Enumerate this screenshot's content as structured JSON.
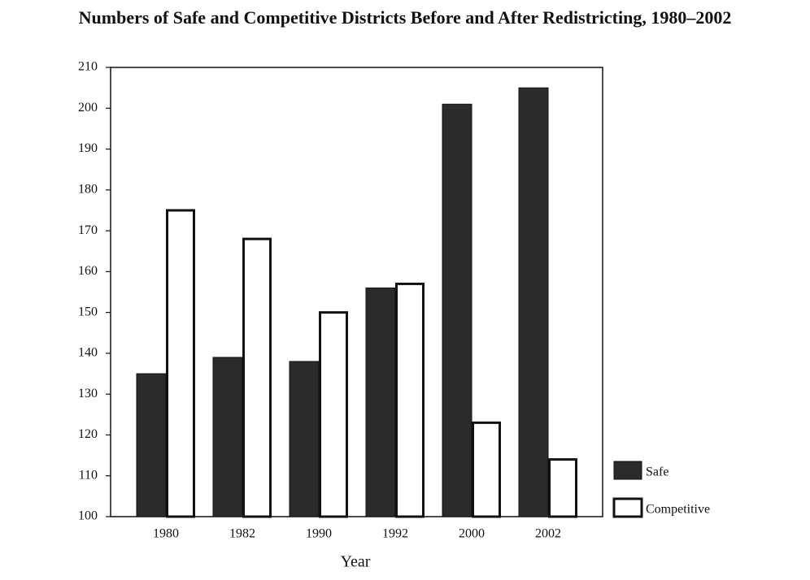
{
  "chart_data": {
    "type": "bar",
    "title": "Numbers of Safe and Competitive Districts Before and After Redistricting, 1980–2002",
    "x_label": "Year",
    "categories": [
      "1980",
      "1982",
      "1990",
      "1992",
      "2000",
      "2002"
    ],
    "series": [
      {
        "name": "Safe",
        "color": "#2b2b2b",
        "values": [
          135,
          139,
          138,
          156,
          201,
          205
        ]
      },
      {
        "name": "Competitive",
        "color": "#ffffff",
        "values": [
          175,
          168,
          150,
          157,
          123,
          114
        ]
      }
    ],
    "ylim": [
      100,
      210
    ],
    "yticks": [
      100,
      110,
      120,
      130,
      140,
      150,
      160,
      170,
      180,
      190,
      200,
      210
    ],
    "grid": false,
    "legend": "right"
  }
}
